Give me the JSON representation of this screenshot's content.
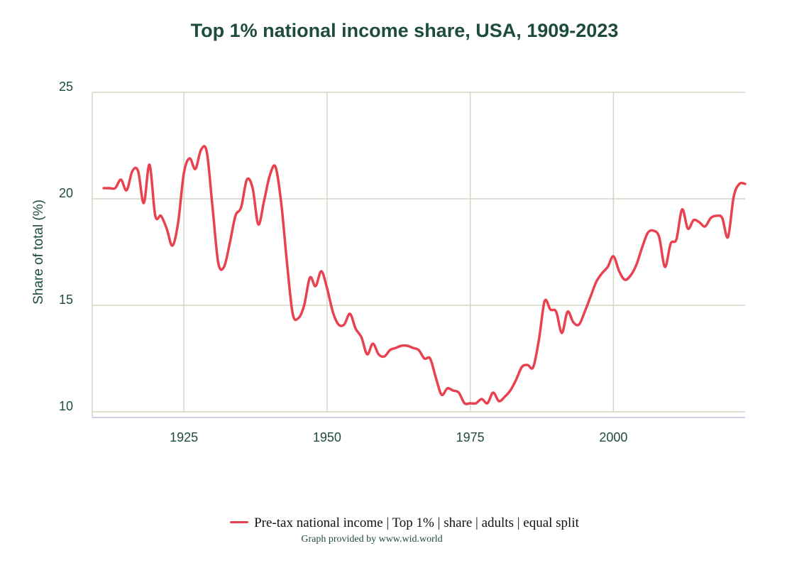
{
  "chart_data": {
    "type": "line",
    "title": "Top 1% national income share, USA, 1909-2023",
    "xlabel": "",
    "ylabel": "Share of total (%)",
    "xlim": [
      1909,
      2023
    ],
    "ylim": [
      10,
      25
    ],
    "xticks": [
      1925,
      1950,
      1975,
      2000
    ],
    "yticks": [
      10,
      15,
      20,
      25
    ],
    "grid": true,
    "line_color": "#e8414f",
    "legend": "bottom-center",
    "series": [
      {
        "name": "Pre-tax national income | Top 1% | share | adults | equal split",
        "x": [
          1911,
          1912,
          1913,
          1914,
          1915,
          1916,
          1917,
          1918,
          1919,
          1920,
          1921,
          1922,
          1923,
          1924,
          1925,
          1926,
          1927,
          1928,
          1929,
          1930,
          1931,
          1932,
          1933,
          1934,
          1935,
          1936,
          1937,
          1938,
          1939,
          1940,
          1941,
          1942,
          1943,
          1944,
          1945,
          1946,
          1947,
          1948,
          1949,
          1950,
          1951,
          1952,
          1953,
          1954,
          1955,
          1956,
          1957,
          1958,
          1959,
          1960,
          1961,
          1962,
          1963,
          1964,
          1965,
          1966,
          1967,
          1968,
          1969,
          1970,
          1971,
          1972,
          1973,
          1974,
          1975,
          1976,
          1977,
          1978,
          1979,
          1980,
          1981,
          1982,
          1983,
          1984,
          1985,
          1986,
          1987,
          1988,
          1989,
          1990,
          1991,
          1992,
          1993,
          1994,
          1995,
          1996,
          1997,
          1998,
          1999,
          2000,
          2001,
          2002,
          2003,
          2004,
          2005,
          2006,
          2007,
          2008,
          2009,
          2010,
          2011,
          2012,
          2013,
          2014,
          2015,
          2016,
          2017,
          2018,
          2019,
          2020,
          2021,
          2022,
          2023
        ],
        "values": [
          20.5,
          20.5,
          20.5,
          20.9,
          20.4,
          21.3,
          21.3,
          19.8,
          21.6,
          19.2,
          19.2,
          18.6,
          17.8,
          18.9,
          21.2,
          21.9,
          21.4,
          22.3,
          22.2,
          19.6,
          17.0,
          16.8,
          17.9,
          19.2,
          19.6,
          20.9,
          20.5,
          18.8,
          19.9,
          21.1,
          21.5,
          19.8,
          17.0,
          14.6,
          14.4,
          15.0,
          16.3,
          15.9,
          16.6,
          15.8,
          14.7,
          14.1,
          14.1,
          14.6,
          13.9,
          13.5,
          12.7,
          13.2,
          12.7,
          12.6,
          12.9,
          13.0,
          13.1,
          13.1,
          13.0,
          12.9,
          12.5,
          12.5,
          11.6,
          10.8,
          11.1,
          11.0,
          10.9,
          10.4,
          10.4,
          10.4,
          10.6,
          10.4,
          10.9,
          10.5,
          10.7,
          11.0,
          11.5,
          12.1,
          12.2,
          12.1,
          13.4,
          15.2,
          14.8,
          14.7,
          13.7,
          14.7,
          14.2,
          14.1,
          14.7,
          15.4,
          16.1,
          16.5,
          16.8,
          17.3,
          16.6,
          16.2,
          16.4,
          16.9,
          17.7,
          18.4,
          18.5,
          18.2,
          16.8,
          17.9,
          18.1,
          19.5,
          18.6,
          19.0,
          18.9,
          18.7,
          19.1,
          19.2,
          19.1,
          18.2,
          20.1,
          20.7,
          20.7
        ]
      }
    ]
  },
  "legend": {
    "label": "Pre-tax national income | Top 1% | share | adults | equal split"
  },
  "credit": "Graph provided by www.wid.world"
}
